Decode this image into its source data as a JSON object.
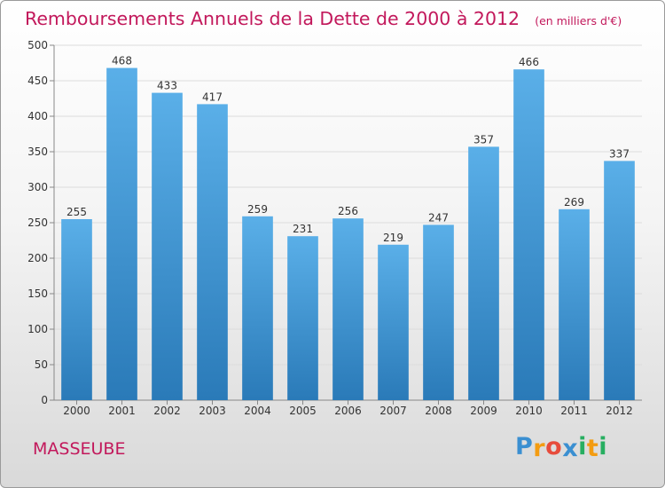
{
  "chart_data": {
    "type": "bar",
    "title": "Remboursements Annuels de la Dette de 2000 à 2012",
    "subtitle": "(en milliers d'€)",
    "categories": [
      "2000",
      "2001",
      "2002",
      "2003",
      "2004",
      "2005",
      "2006",
      "2007",
      "2008",
      "2009",
      "2010",
      "2011",
      "2012"
    ],
    "values": [
      255,
      468,
      433,
      417,
      259,
      231,
      256,
      219,
      247,
      357,
      466,
      269,
      337
    ],
    "ylim": [
      0,
      500
    ],
    "yticks": [
      0,
      50,
      100,
      150,
      200,
      250,
      300,
      350,
      400,
      450,
      500
    ],
    "grid": true,
    "xlabel": "",
    "ylabel": "",
    "bar_color_top": "#5aafe8",
    "bar_color_bottom": "#2a7ab8",
    "title_color": "#c2185b"
  },
  "commune": "MASSEUBE",
  "brand": {
    "name": "Proxiti",
    "letters": [
      "P",
      "r",
      "o",
      "x",
      "i",
      "t",
      "i"
    ],
    "colors": [
      "#3a8fd1",
      "#f39c12",
      "#e74c3c",
      "#3a8fd1",
      "#27ae60",
      "#f39c12",
      "#27ae60"
    ]
  }
}
